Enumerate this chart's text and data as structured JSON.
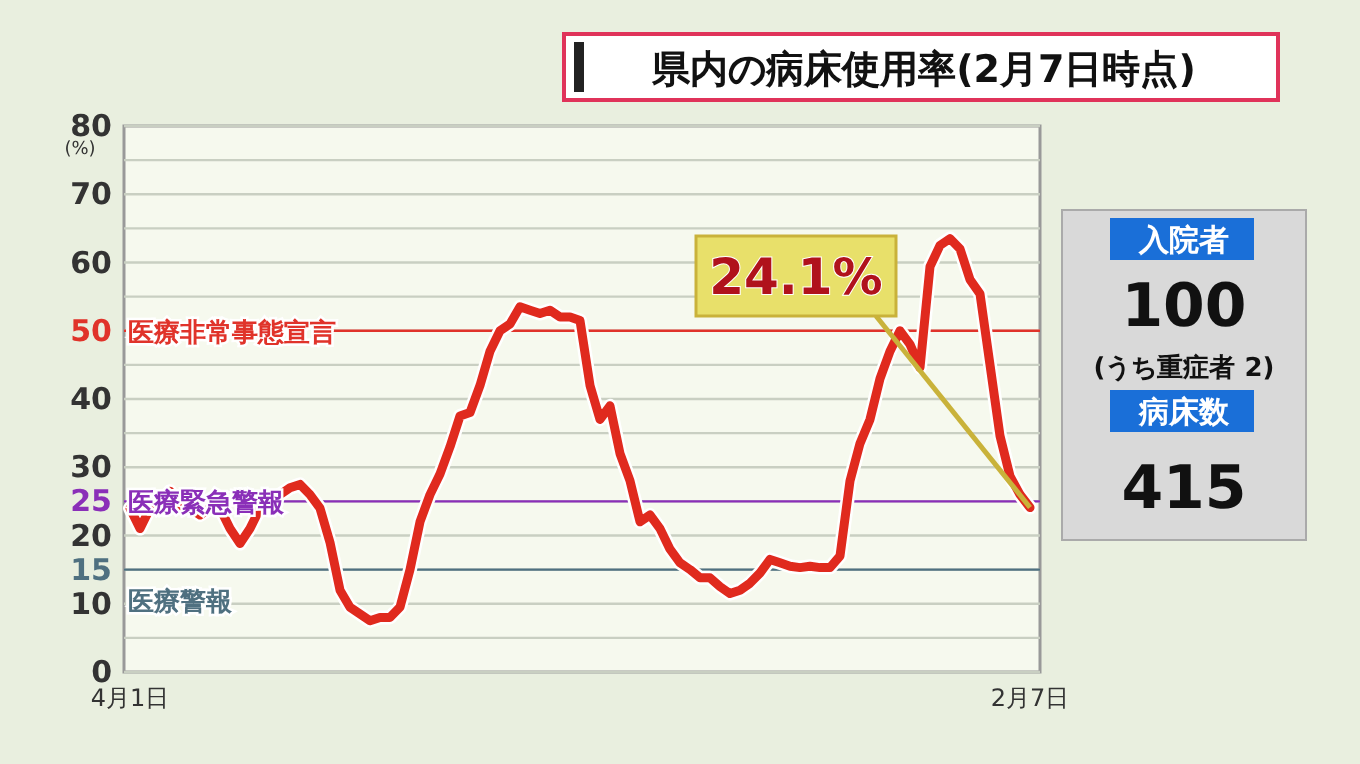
{
  "chart_data": [
    {
      "type": "line",
      "title": "県内の病床使用率(2月7日時点)",
      "ylabel": "(%)",
      "categories": [
        "4月1日",
        null,
        null,
        null,
        null,
        null,
        null,
        null,
        null,
        null,
        null,
        null,
        null,
        null,
        null,
        null,
        null,
        null,
        null,
        null,
        null,
        null,
        null,
        null,
        null,
        null,
        null,
        null,
        null,
        null,
        null,
        null,
        null,
        null,
        null,
        null,
        null,
        null,
        null,
        null,
        null,
        null,
        null,
        null,
        null,
        null,
        null,
        null,
        null,
        null,
        null,
        null,
        null,
        null,
        null,
        null,
        null,
        null,
        null,
        null,
        null,
        null,
        null,
        null,
        null,
        null,
        null,
        null,
        null,
        null,
        null,
        null,
        null,
        null,
        null,
        null,
        null,
        null,
        null,
        null,
        null,
        null,
        null,
        null,
        null,
        null,
        null,
        null,
        null,
        null,
        "2月7日"
      ],
      "series": [
        {
          "color": "#e02a1e",
          "values": [
            24,
            21,
            24,
            23.8,
            26.5,
            24,
            24,
            23,
            24,
            24,
            21,
            18.8,
            21,
            24,
            25,
            26,
            27,
            27.5,
            26,
            24,
            19,
            12,
            9.5,
            8.5,
            7.5,
            8,
            8,
            9.5,
            15,
            22,
            26,
            29,
            33,
            37.5,
            38,
            42,
            47,
            50,
            51,
            53.5,
            53,
            52.5,
            53,
            52,
            52,
            51.5,
            42,
            37,
            39,
            32,
            28,
            22,
            23,
            21,
            18,
            16,
            15,
            13.8,
            13.8,
            12.5,
            11.5,
            12,
            13,
            14.5,
            16.5,
            16,
            15.5,
            15.3,
            15.5,
            15.3,
            15.3,
            17,
            28,
            33.5,
            37,
            43,
            47,
            50,
            48,
            44.6,
            59.4,
            62.5,
            63.5,
            62,
            57.5,
            55.4,
            45,
            34.6,
            28.7,
            26,
            24.1
          ]
        }
      ],
      "ylim": [
        0,
        80
      ],
      "yticks": [
        0,
        {
          "value": 5,
          "label": null
        },
        10,
        15,
        20,
        25,
        30,
        {
          "value": 35,
          "label": null
        },
        40,
        {
          "value": 45,
          "label": null
        },
        50,
        {
          "value": 55,
          "label": null
        },
        60,
        {
          "value": 65,
          "label": null
        },
        70,
        {
          "value": 75,
          "label": null
        },
        80
      ],
      "grid": "y",
      "ref_lines": [
        {
          "axis": "y",
          "value": 50,
          "label": "医療非常事態宣言",
          "color": "#e0332a"
        },
        {
          "axis": "y",
          "value": 25,
          "label": "医療緊急警報",
          "color": "#8a2fb8"
        },
        {
          "axis": "y",
          "value": 15,
          "label": "医療警報",
          "color": "#4f7080"
        }
      ],
      "annotations": [
        {
          "text": "24.1%",
          "x": "2月7日",
          "y": 24.1
        }
      ]
    },
    {
      "type": "other",
      "annotations": [
        "入院者",
        "100",
        "(うち重症者 2)",
        "病床数",
        "415"
      ]
    }
  ]
}
